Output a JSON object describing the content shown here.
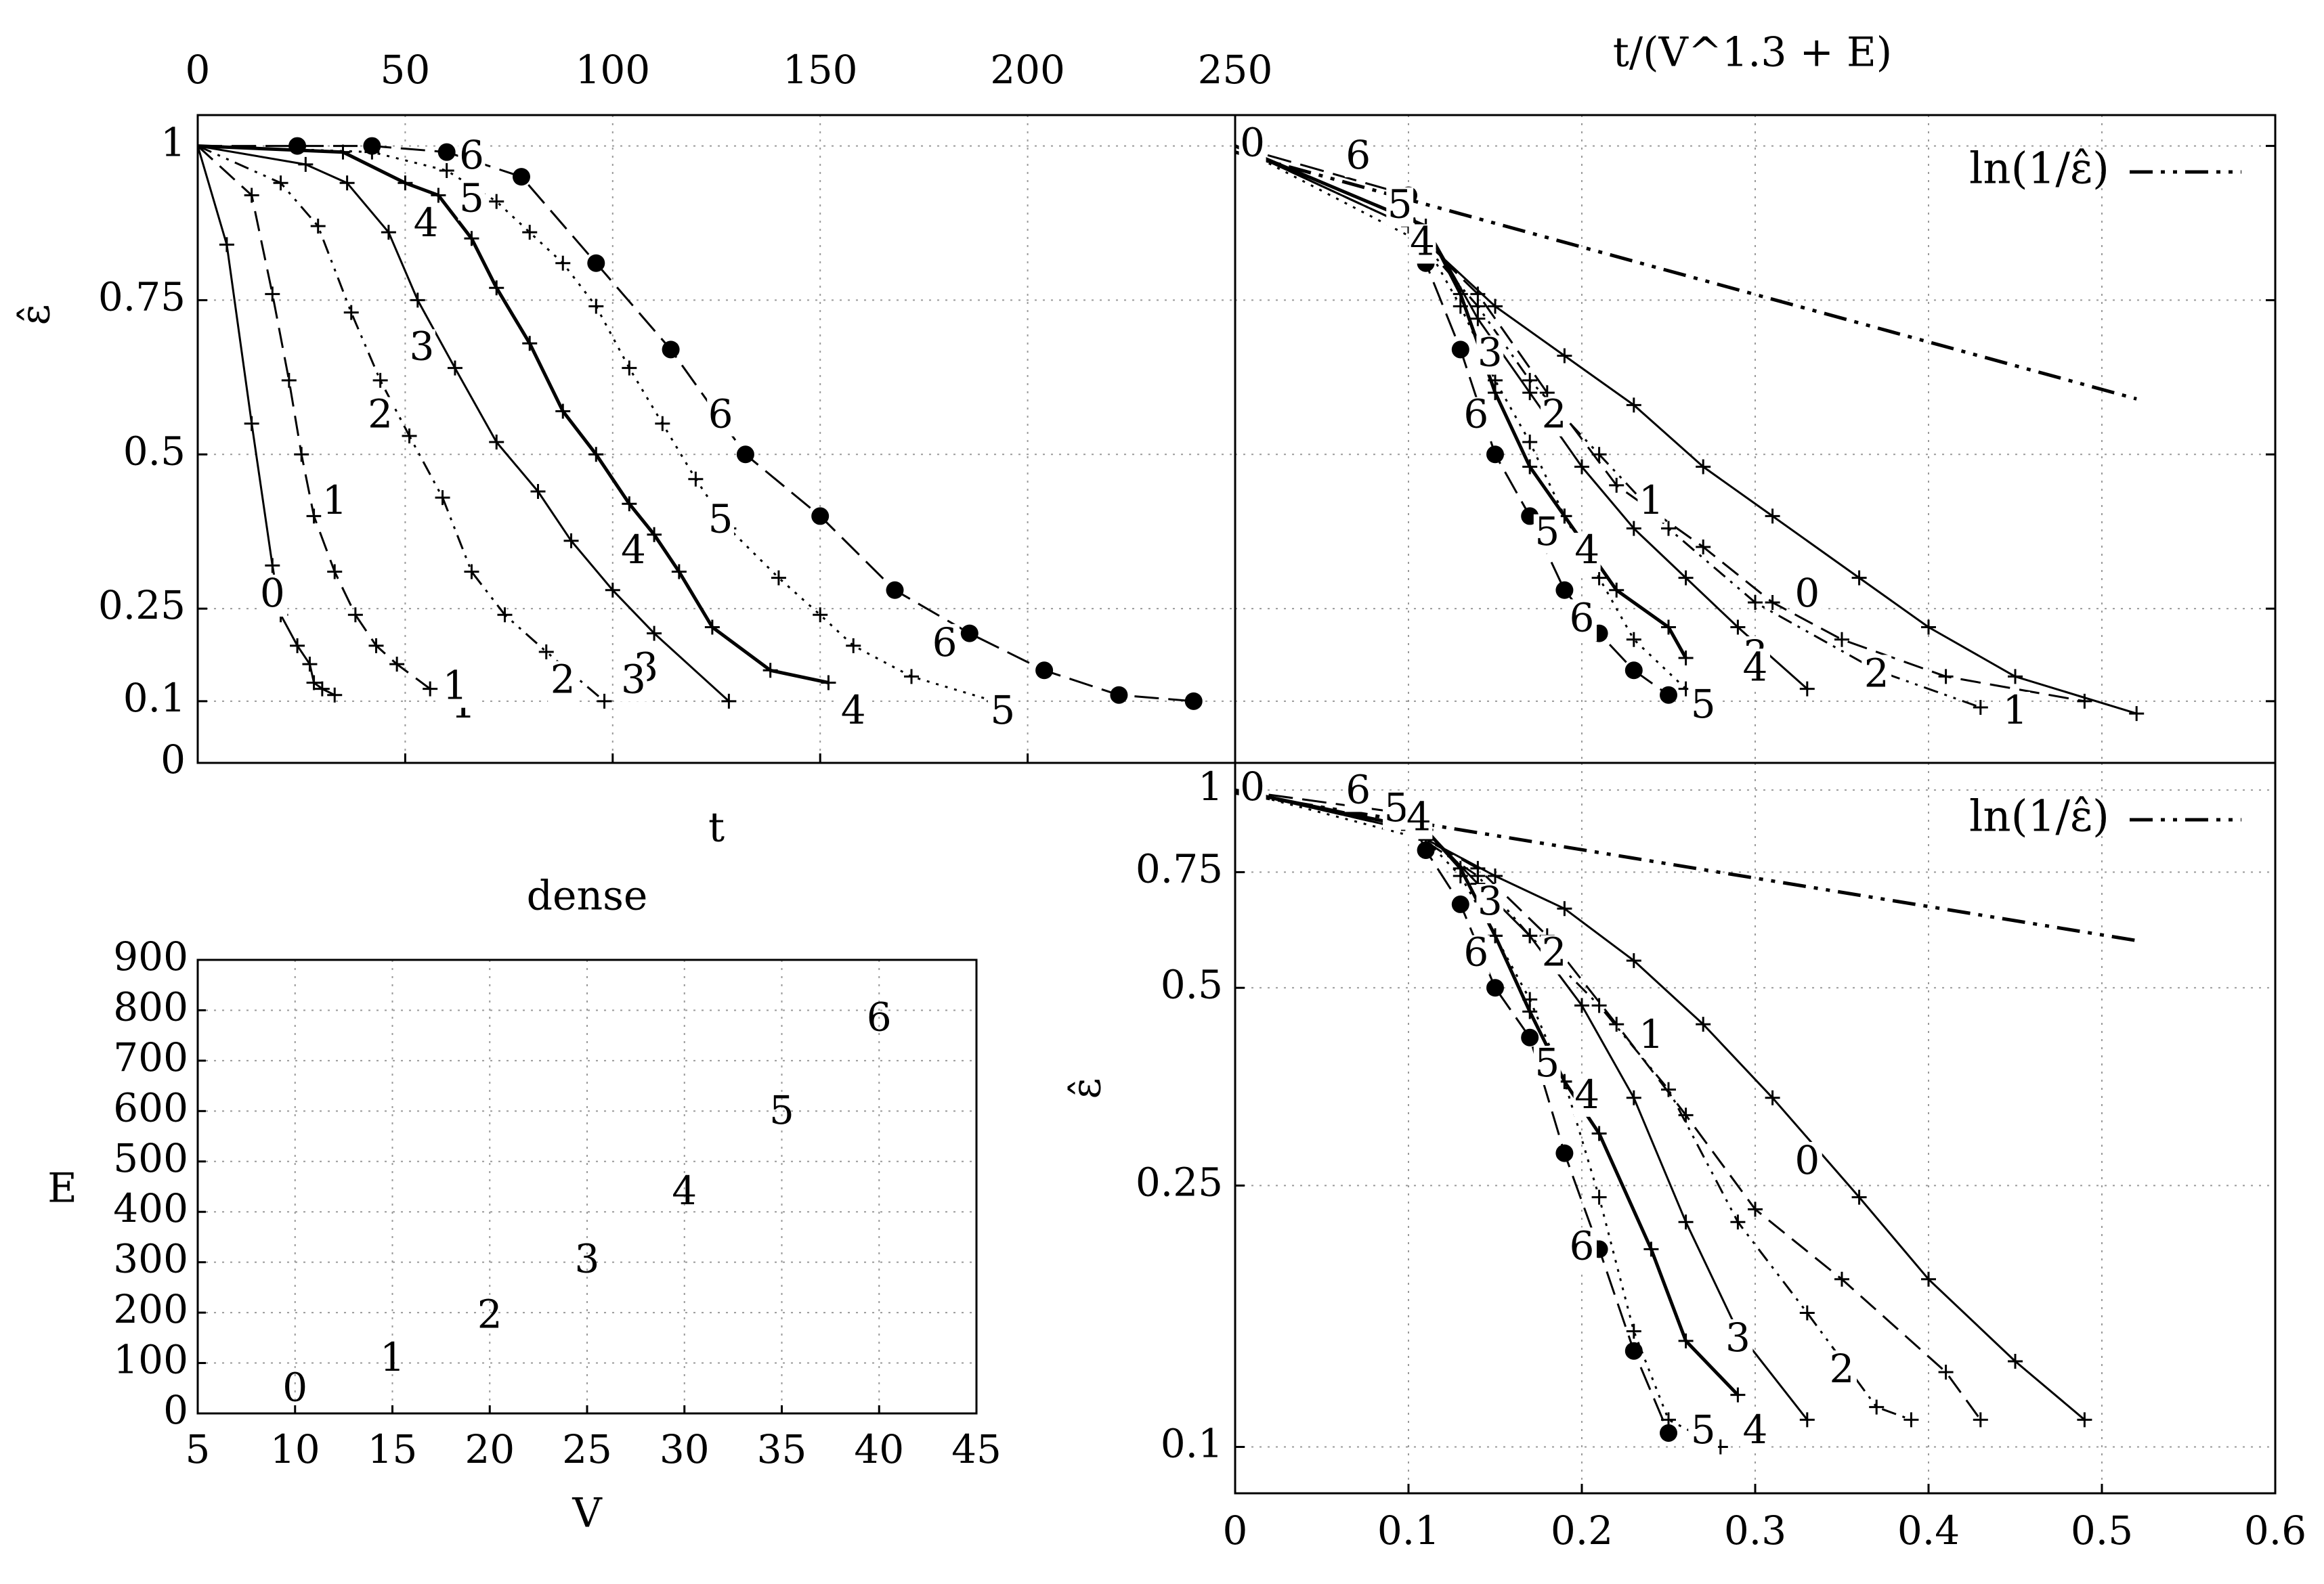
{
  "chart_data": [
    {
      "id": "top-left",
      "type": "line",
      "xlabel": "t",
      "ylabel": "ε̂",
      "xlim": [
        0,
        250
      ],
      "ylim": [
        0,
        1.05
      ],
      "xticks": [
        "0",
        "50",
        "100",
        "150",
        "200",
        "250"
      ],
      "yticks": [
        "0",
        "0.1",
        "0.25",
        "0.5",
        "0.75",
        "1"
      ],
      "series": [
        {
          "name": "0",
          "dash": "",
          "marker": "plus",
          "x": [
            0,
            7,
            13,
            18,
            20,
            24,
            27,
            28,
            30,
            33
          ],
          "y": [
            1.0,
            0.84,
            0.55,
            0.32,
            0.24,
            0.19,
            0.16,
            0.13,
            0.12,
            0.11
          ],
          "label_at": [
            18,
            0.27
          ]
        },
        {
          "name": "1",
          "dash": "30 14",
          "marker": "plus",
          "x": [
            0,
            13,
            18,
            22,
            25,
            28,
            33,
            38,
            43,
            48,
            56
          ],
          "y": [
            1.0,
            0.92,
            0.76,
            0.62,
            0.5,
            0.4,
            0.31,
            0.24,
            0.19,
            0.16,
            0.12
          ],
          "label_at": [
            64,
            0.09
          ]
        },
        {
          "name": "2",
          "dash": "22 10 4 10 4 10",
          "marker": "plus",
          "x": [
            0,
            20,
            29,
            37,
            44,
            51,
            59,
            66,
            74,
            84,
            98
          ],
          "y": [
            1.0,
            0.94,
            0.87,
            0.73,
            0.62,
            0.53,
            0.43,
            0.31,
            0.24,
            0.18,
            0.1
          ],
          "label_at": [
            88,
            0.13
          ]
        },
        {
          "name": "3",
          "dash": "",
          "marker": "plus",
          "x": [
            0,
            26,
            36,
            46,
            53,
            62,
            72,
            82,
            90,
            100,
            110,
            128
          ],
          "y": [
            1.0,
            0.97,
            0.94,
            0.86,
            0.75,
            0.64,
            0.52,
            0.44,
            0.36,
            0.28,
            0.21,
            0.1
          ],
          "label_at": [
            108,
            0.15
          ]
        },
        {
          "name": "4",
          "dash": "",
          "marker": "plus",
          "width": 5,
          "x": [
            0,
            35,
            50,
            58,
            66,
            72,
            80,
            88,
            96,
            104,
            110,
            116,
            124,
            138,
            152
          ],
          "y": [
            1.0,
            0.99,
            0.94,
            0.92,
            0.85,
            0.77,
            0.68,
            0.57,
            0.5,
            0.42,
            0.37,
            0.31,
            0.22,
            0.15,
            0.13
          ],
          "label_at": [
            158,
            0.08
          ]
        },
        {
          "name": "5",
          "dash": "4 10",
          "marker": "plus",
          "x": [
            0,
            42,
            60,
            72,
            80,
            88,
            96,
            104,
            112,
            120,
            128,
            140,
            150,
            158,
            172,
            192
          ],
          "y": [
            1.0,
            0.99,
            0.96,
            0.91,
            0.86,
            0.81,
            0.74,
            0.64,
            0.55,
            0.46,
            0.38,
            0.3,
            0.24,
            0.19,
            0.14,
            0.1
          ],
          "label_at": [
            194,
            0.08
          ]
        },
        {
          "name": "6",
          "dash": "36 14",
          "marker": "dot",
          "x": [
            0,
            24,
            42,
            60,
            78,
            96,
            114,
            132,
            150,
            168,
            186,
            204,
            222,
            240
          ],
          "y": [
            1.0,
            1.0,
            1.0,
            0.99,
            0.95,
            0.81,
            0.67,
            0.5,
            0.4,
            0.28,
            0.21,
            0.15,
            0.11,
            0.1
          ],
          "label_at": [
            180,
            0.19
          ]
        }
      ],
      "annotations": [
        {
          "text": "6",
          "x": 66,
          "y": 0.98
        },
        {
          "text": "5",
          "x": 66,
          "y": 0.91
        },
        {
          "text": "4",
          "x": 55,
          "y": 0.87
        },
        {
          "text": "3",
          "x": 54,
          "y": 0.67
        },
        {
          "text": "2",
          "x": 44,
          "y": 0.56
        },
        {
          "text": "1",
          "x": 33,
          "y": 0.42
        },
        {
          "text": "4",
          "x": 105,
          "y": 0.34
        },
        {
          "text": "5",
          "x": 126,
          "y": 0.39
        },
        {
          "text": "6",
          "x": 126,
          "y": 0.56
        },
        {
          "text": "1",
          "x": 62,
          "y": 0.12
        },
        {
          "text": "3",
          "x": 105,
          "y": 0.13
        }
      ]
    },
    {
      "id": "top-right",
      "type": "line",
      "title": "t/(V^1.3 + E)",
      "xlim": [
        0,
        0.6
      ],
      "ylim": [
        0,
        1.05
      ],
      "legend": "top-right",
      "legend_label": "ln(1/ε̂)",
      "series": [
        {
          "name": "ln(1/ε̂)",
          "dash": "34 12 6 12 6 12",
          "width": 5,
          "x": [
            0.0,
            0.52
          ],
          "y": [
            0.99,
            0.59
          ]
        },
        {
          "name": "0",
          "dash": "",
          "marker": "plus",
          "x": [
            0.0,
            0.1,
            0.15,
            0.19,
            0.23,
            0.27,
            0.31,
            0.36,
            0.4,
            0.45,
            0.52
          ],
          "y": [
            1.0,
            0.87,
            0.74,
            0.66,
            0.58,
            0.48,
            0.4,
            0.3,
            0.22,
            0.14,
            0.08
          ],
          "label_at": [
            0.33,
            0.27
          ]
        },
        {
          "name": "1",
          "dash": "30 14",
          "marker": "plus",
          "x": [
            0.0,
            0.1,
            0.14,
            0.18,
            0.22,
            0.27,
            0.31,
            0.35,
            0.41,
            0.49
          ],
          "y": [
            1.0,
            0.87,
            0.76,
            0.6,
            0.45,
            0.35,
            0.26,
            0.2,
            0.14,
            0.1
          ],
          "label_at": [
            0.45,
            0.08
          ]
        },
        {
          "name": "2",
          "dash": "22 10 4 10 4 10",
          "marker": "plus",
          "x": [
            0.0,
            0.1,
            0.14,
            0.17,
            0.21,
            0.25,
            0.3,
            0.37,
            0.43
          ],
          "y": [
            1.0,
            0.87,
            0.74,
            0.62,
            0.5,
            0.38,
            0.26,
            0.15,
            0.09
          ],
          "label_at": [
            0.37,
            0.14
          ]
        },
        {
          "name": "3",
          "dash": "",
          "marker": "plus",
          "x": [
            0.0,
            0.11,
            0.14,
            0.17,
            0.2,
            0.23,
            0.26,
            0.29,
            0.33
          ],
          "y": [
            1.0,
            0.87,
            0.72,
            0.6,
            0.48,
            0.38,
            0.3,
            0.22,
            0.12
          ],
          "label_at": [
            0.3,
            0.17
          ]
        },
        {
          "name": "4",
          "dash": "",
          "marker": "plus",
          "width": 5,
          "x": [
            0.0,
            0.11,
            0.13,
            0.15,
            0.17,
            0.19,
            0.22,
            0.25,
            0.26
          ],
          "y": [
            1.0,
            0.87,
            0.76,
            0.6,
            0.48,
            0.4,
            0.28,
            0.22,
            0.17
          ],
          "label_at": [
            0.3,
            0.15
          ]
        },
        {
          "name": "5",
          "dash": "4 10",
          "marker": "plus",
          "x": [
            0.0,
            0.11,
            0.13,
            0.15,
            0.17,
            0.19,
            0.21,
            0.23,
            0.26
          ],
          "y": [
            1.0,
            0.84,
            0.74,
            0.62,
            0.52,
            0.4,
            0.3,
            0.2,
            0.12
          ],
          "label_at": [
            0.27,
            0.09
          ]
        },
        {
          "name": "6",
          "dash": "36 14",
          "marker": "dot",
          "x": [
            0.0,
            0.1,
            0.11,
            0.13,
            0.15,
            0.17,
            0.19,
            0.21,
            0.23,
            0.25
          ],
          "y": [
            1.0,
            0.92,
            0.81,
            0.67,
            0.5,
            0.4,
            0.28,
            0.21,
            0.15,
            0.11
          ],
          "label_at": [
            0.2,
            0.23
          ]
        }
      ],
      "annotations": [
        {
          "text": "6",
          "x": 0.071,
          "y": 0.98
        },
        {
          "text": "5",
          "x": 0.095,
          "y": 0.9
        },
        {
          "text": "4",
          "x": 0.108,
          "y": 0.84
        },
        {
          "text": "3",
          "x": 0.147,
          "y": 0.66
        },
        {
          "text": "2",
          "x": 0.184,
          "y": 0.56
        },
        {
          "text": "6",
          "x": 0.139,
          "y": 0.56
        },
        {
          "text": "1",
          "x": 0.24,
          "y": 0.42
        },
        {
          "text": "5",
          "x": 0.18,
          "y": 0.37
        },
        {
          "text": "4",
          "x": 0.203,
          "y": 0.34
        },
        {
          "text": "0",
          "x": 0.01,
          "y": 1.0
        }
      ]
    },
    {
      "id": "bottom-right",
      "type": "line",
      "ylabel": "ε̂",
      "yscale": "log",
      "xlim": [
        0,
        0.6
      ],
      "ylim": [
        0.085,
        1.1
      ],
      "xticks": [
        "0",
        "0.1",
        "0.2",
        "0.3",
        "0.4",
        "0.5",
        "0.6"
      ],
      "yticks": [
        "0.1",
        "0.25",
        "0.5",
        "0.75",
        "1"
      ],
      "legend": "top-right",
      "legend_label": "ln(1/ε̂)",
      "series": [
        {
          "name": "ln(1/ε̂)",
          "dash": "34 12 6 12 6 12",
          "width": 5,
          "x": [
            0.0,
            0.52
          ],
          "y": [
            0.99,
            0.59
          ]
        },
        {
          "name": "0",
          "dash": "",
          "marker": "plus",
          "x": [
            0.0,
            0.1,
            0.15,
            0.19,
            0.23,
            0.27,
            0.31,
            0.36,
            0.4,
            0.45,
            0.49
          ],
          "y": [
            1.0,
            0.87,
            0.74,
            0.66,
            0.55,
            0.44,
            0.34,
            0.24,
            0.18,
            0.135,
            0.11
          ],
          "label_at": [
            0.33,
            0.27
          ]
        },
        {
          "name": "1",
          "dash": "30 14",
          "marker": "plus",
          "x": [
            0.0,
            0.1,
            0.14,
            0.18,
            0.22,
            0.26,
            0.3,
            0.35,
            0.41,
            0.43
          ],
          "y": [
            1.0,
            0.87,
            0.76,
            0.6,
            0.44,
            0.32,
            0.23,
            0.18,
            0.13,
            0.11
          ],
          "label_at": [
            0.24,
            0.42
          ]
        },
        {
          "name": "2",
          "dash": "22 10 4 10 4 10",
          "marker": "plus",
          "x": [
            0.0,
            0.1,
            0.14,
            0.17,
            0.21,
            0.25,
            0.29,
            0.33,
            0.37,
            0.39
          ],
          "y": [
            1.0,
            0.87,
            0.74,
            0.6,
            0.47,
            0.35,
            0.22,
            0.16,
            0.115,
            0.11
          ],
          "label_at": [
            0.35,
            0.13
          ]
        },
        {
          "name": "3",
          "dash": "",
          "marker": "plus",
          "x": [
            0.0,
            0.11,
            0.14,
            0.17,
            0.2,
            0.23,
            0.26,
            0.29,
            0.33
          ],
          "y": [
            1.0,
            0.87,
            0.72,
            0.6,
            0.47,
            0.34,
            0.22,
            0.15,
            0.11
          ],
          "label_at": [
            0.29,
            0.145
          ]
        },
        {
          "name": "4",
          "dash": "",
          "marker": "plus",
          "width": 5,
          "x": [
            0.0,
            0.11,
            0.13,
            0.15,
            0.17,
            0.19,
            0.21,
            0.24,
            0.26,
            0.29
          ],
          "y": [
            1.0,
            0.87,
            0.76,
            0.6,
            0.46,
            0.36,
            0.3,
            0.2,
            0.145,
            0.12
          ],
          "label_at": [
            0.3,
            0.105
          ]
        },
        {
          "name": "5",
          "dash": "4 10",
          "marker": "plus",
          "x": [
            0.0,
            0.11,
            0.13,
            0.15,
            0.17,
            0.19,
            0.21,
            0.23,
            0.25,
            0.28
          ],
          "y": [
            1.0,
            0.84,
            0.74,
            0.6,
            0.48,
            0.36,
            0.24,
            0.15,
            0.11,
            0.1
          ],
          "label_at": [
            0.27,
            0.105
          ]
        },
        {
          "name": "6",
          "dash": "36 14",
          "marker": "dot",
          "x": [
            0.0,
            0.1,
            0.11,
            0.13,
            0.15,
            0.17,
            0.19,
            0.21,
            0.23,
            0.25
          ],
          "y": [
            1.0,
            0.92,
            0.81,
            0.67,
            0.5,
            0.42,
            0.28,
            0.2,
            0.14,
            0.105
          ],
          "label_at": [
            0.2,
            0.2
          ]
        }
      ],
      "annotations": [
        {
          "text": "6",
          "x": 0.071,
          "y": 0.99
        },
        {
          "text": "5",
          "x": 0.093,
          "y": 0.93
        },
        {
          "text": "4",
          "x": 0.106,
          "y": 0.9
        },
        {
          "text": "3",
          "x": 0.147,
          "y": 0.67
        },
        {
          "text": "2",
          "x": 0.184,
          "y": 0.56
        },
        {
          "text": "6",
          "x": 0.139,
          "y": 0.56
        },
        {
          "text": "5",
          "x": 0.18,
          "y": 0.38
        },
        {
          "text": "4",
          "x": 0.203,
          "y": 0.34
        },
        {
          "text": "0",
          "x": 0.01,
          "y": 1.0
        }
      ]
    },
    {
      "id": "bottom-left",
      "type": "scatter",
      "title": "dense",
      "xlabel": "V",
      "ylabel": "E",
      "xlim": [
        5,
        45
      ],
      "ylim": [
        0,
        900
      ],
      "xticks": [
        "5",
        "10",
        "15",
        "20",
        "25",
        "30",
        "35",
        "40",
        "45"
      ],
      "yticks": [
        "0",
        "100",
        "200",
        "300",
        "400",
        "500",
        "600",
        "700",
        "800",
        "900"
      ],
      "points": [
        {
          "label": "0",
          "x": 10,
          "y": 45
        },
        {
          "label": "1",
          "x": 15,
          "y": 105
        },
        {
          "label": "2",
          "x": 20,
          "y": 190
        },
        {
          "label": "3",
          "x": 25,
          "y": 300
        },
        {
          "label": "4",
          "x": 30,
          "y": 435
        },
        {
          "label": "5",
          "x": 35,
          "y": 595
        },
        {
          "label": "6",
          "x": 40,
          "y": 780
        }
      ]
    }
  ]
}
